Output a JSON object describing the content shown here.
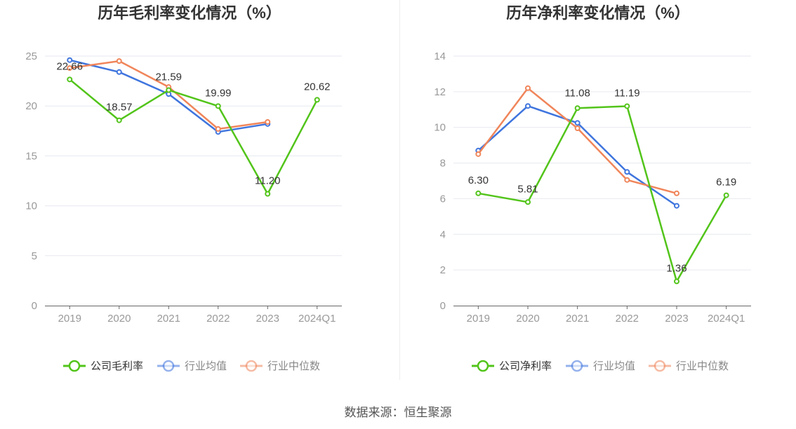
{
  "colors": {
    "company": "#52c41a",
    "avg": "#3f75de",
    "median": "#f0855a"
  },
  "source": "数据来源：恒生聚源",
  "chart_data": [
    {
      "type": "line",
      "title": "历年毛利率变化情况（%）",
      "categories": [
        "2019",
        "2020",
        "2021",
        "2022",
        "2023",
        "2024Q1"
      ],
      "ylim": [
        0,
        25
      ],
      "yticks": [
        0,
        5,
        10,
        15,
        20,
        25
      ],
      "grid": true,
      "legend_position": "bottom",
      "series": [
        {
          "key": "company",
          "name": "公司毛利率",
          "values": [
            22.66,
            18.57,
            21.59,
            19.99,
            11.2,
            20.62
          ],
          "labels": [
            "22.66",
            "18.57",
            "21.59",
            "19.99",
            "11.20",
            "20.62"
          ]
        },
        {
          "key": "avg",
          "name": "行业均值",
          "values": [
            24.6,
            23.4,
            21.2,
            17.4,
            18.2,
            null
          ]
        },
        {
          "key": "median",
          "name": "行业中位数",
          "values": [
            23.8,
            24.5,
            21.9,
            17.7,
            18.4,
            null
          ]
        }
      ]
    },
    {
      "type": "line",
      "title": "历年净利率变化情况（%）",
      "categories": [
        "2019",
        "2020",
        "2021",
        "2022",
        "2023",
        "2024Q1"
      ],
      "ylim": [
        0,
        14
      ],
      "yticks": [
        0,
        2,
        4,
        6,
        8,
        10,
        12,
        14
      ],
      "grid": true,
      "legend_position": "bottom",
      "series": [
        {
          "key": "company",
          "name": "公司净利率",
          "values": [
            6.3,
            5.81,
            11.08,
            11.19,
            1.36,
            6.19
          ],
          "labels": [
            "6.30",
            "5.81",
            "11.08",
            "11.19",
            "1.36",
            "6.19"
          ]
        },
        {
          "key": "avg",
          "name": "行业均值",
          "values": [
            8.7,
            11.2,
            10.25,
            7.5,
            5.6,
            null
          ]
        },
        {
          "key": "median",
          "name": "行业中位数",
          "values": [
            8.5,
            12.2,
            9.95,
            7.05,
            6.3,
            null
          ]
        }
      ]
    }
  ]
}
